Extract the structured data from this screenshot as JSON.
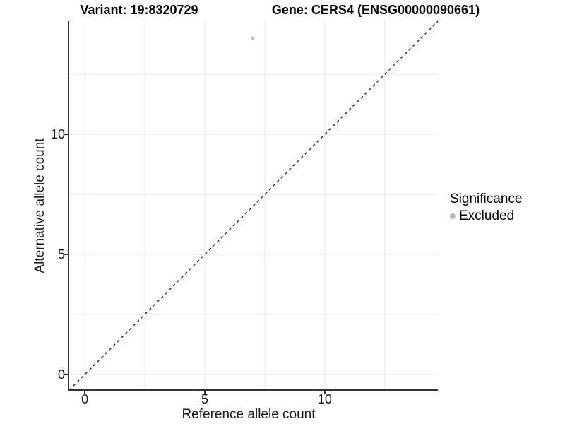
{
  "chart_data": {
    "type": "scatter",
    "title_left": "Variant: 19:8320729",
    "title_right": "Gene: CERS4 (ENSG00000090661)",
    "xlabel": "Reference allele count",
    "ylabel": "Alternative allele count",
    "xlim": [
      -0.68,
      14.71
    ],
    "ylim": [
      -0.65,
      14.71
    ],
    "x_major_ticks": [
      0,
      5,
      10
    ],
    "y_major_ticks": [
      0,
      5,
      10
    ],
    "x_minor_ticks": [
      2.5,
      7.5,
      12.5
    ],
    "y_minor_ticks": [
      2.5,
      7.5,
      12.5
    ],
    "grid": "major+minor on white panel",
    "identity_line": {
      "type": "abline",
      "slope": 1,
      "intercept": 0,
      "style": "dashed"
    },
    "series": [
      {
        "name": "Excluded",
        "color": "#c2c2c2",
        "points": [
          {
            "x": 7,
            "y": 14
          }
        ]
      }
    ],
    "legend": {
      "title": "Significance",
      "position": "right",
      "items": [
        {
          "label": "Excluded",
          "color": "#b9b9b9"
        }
      ]
    }
  },
  "colors": {
    "background": "#ffffff",
    "grid": "#e6e6e6",
    "axis": "#333333",
    "tick_label": "#1a1a1a",
    "identity_line": "#1a1a1a",
    "point": "#c2c2c2"
  }
}
